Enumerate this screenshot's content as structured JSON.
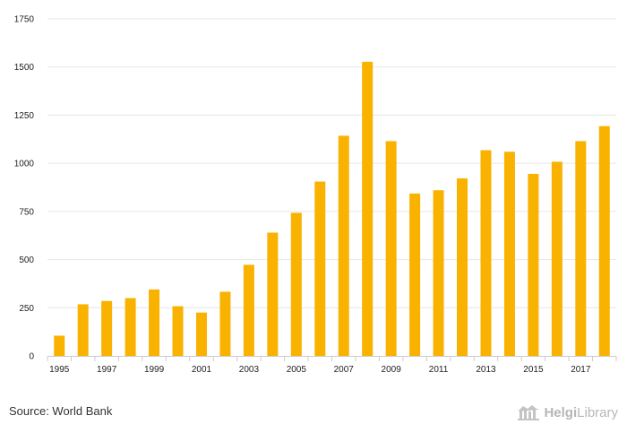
{
  "chart_data": {
    "type": "bar",
    "title": "",
    "xlabel": "",
    "ylabel": "",
    "categories": [
      "1995",
      "1996",
      "1997",
      "1998",
      "1999",
      "2000",
      "2001",
      "2002",
      "2003",
      "2004",
      "2005",
      "2006",
      "2007",
      "2008",
      "2009",
      "2010",
      "2011",
      "2012",
      "2013",
      "2014",
      "2015",
      "2016",
      "2017",
      "2018"
    ],
    "x_tick_labels": [
      "1995",
      "1997",
      "1999",
      "2001",
      "2003",
      "2005",
      "2007",
      "2009",
      "2011",
      "2013",
      "2015",
      "2017"
    ],
    "values": [
      105,
      268,
      285,
      300,
      345,
      258,
      225,
      333,
      473,
      640,
      743,
      905,
      1143,
      1527,
      1115,
      843,
      860,
      922,
      1068,
      1060,
      945,
      1008,
      1115,
      1193
    ],
    "y_ticks": [
      0,
      250,
      500,
      750,
      1000,
      1250,
      1500,
      1750
    ],
    "ylim": [
      0,
      1750
    ],
    "grid": true,
    "colors": {
      "bar": "#f9b200",
      "grid": "#e6e6e6",
      "axis": "#cccccc"
    }
  },
  "footer": {
    "source": "Source: World Bank",
    "brand_a": "Helgi",
    "brand_b": "Library",
    "brand_icon": "building-icon"
  }
}
